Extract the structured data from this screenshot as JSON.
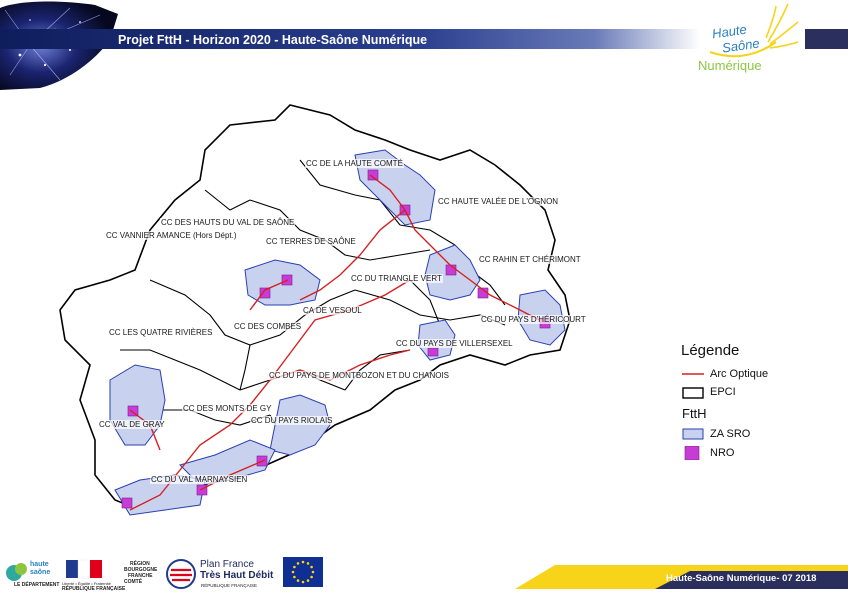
{
  "header": {
    "title": "Projet FttH - Horizon 2020 - Haute-Saône Numérique"
  },
  "logo": {
    "line1": "Haute",
    "line2": "Saône",
    "line3": "Numérique",
    "accent_color": "#f7d31a",
    "text_color": "#2a80c2",
    "sub_color": "#8cc63f"
  },
  "map": {
    "labels": [
      "CC DE LA HAUTE COMTÉ",
      "CC HAUTE VALÉE DE L'OGNON",
      "CC DES HAUTS DU VAL DE SAÔNE",
      "CC VANNIER AMANCE (Hors Dépt.)",
      "CC TERRES DE SAÔNE",
      "CC RAHIN ET CHÉRIMONT",
      "CC DU TRIANGLE VERT",
      "CA DE VESOUL",
      "CC DU PAYS D'HÉRICOURT",
      "CC LES QUATRE RIVIÈRES",
      "CC DES COMBES",
      "CC DU PAYS DE VILLERSEXEL",
      "CC DU PAYS DE MONTBOZON ET DU CHANOIS",
      "CC DES MONTS DE GY",
      "CC VAL DE GRAY",
      "CC DU PAYS RIOLAIS",
      "CC DU VAL MARNAYSIEN"
    ],
    "colors": {
      "epci_border": "#000000",
      "fiber": "#d62020",
      "za_fill": "#c8d2ee",
      "za_border": "#2a3fb0",
      "nro": "#c83cd6"
    }
  },
  "legend": {
    "title": "Légende",
    "items": [
      "Arc Optique",
      "EPCI"
    ],
    "section": "FttH",
    "ftth_items": [
      "ZA SRO",
      "NRO"
    ]
  },
  "footer": {
    "text": "Haute-Saône Numérique- 07 2018"
  },
  "partners": {
    "hs_line1": "haute",
    "hs_line2": "saône",
    "hs_line3": "LE DÉPARTEMENT",
    "rf_line1": "Liberté • Égalité • Fraternité",
    "rf_line2": "RÉPUBLIQUE FRANÇAISE",
    "region_line1": "RÉGION",
    "region_line2": "BOURGOGNE",
    "region_line3": "FRANCHE",
    "region_line4": "COMTÉ",
    "plan_line1": "Plan France",
    "plan_line2": "Très Haut Débit",
    "plan_line3": "RÉPUBLIQUE FRANÇAISE"
  }
}
